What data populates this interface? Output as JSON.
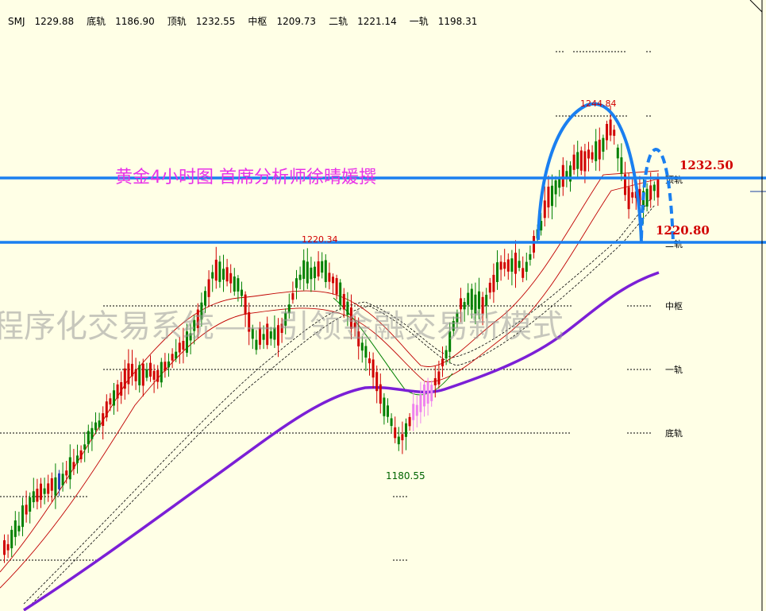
{
  "header": {
    "symbol": "SMJ",
    "symbol_value": "1229.88",
    "items": [
      {
        "label": "底轨",
        "value": "1186.90"
      },
      {
        "label": "顶轨",
        "value": "1232.55"
      },
      {
        "label": "中枢",
        "value": "1209.73"
      },
      {
        "label": "二轨",
        "value": "1221.14"
      },
      {
        "label": "一轨",
        "value": "1198.31"
      }
    ]
  },
  "annotations": {
    "title": "黄金4小时图  首席分析师徐晴媛撰",
    "watermark": "程序化交易系统——引领金融交易新模式",
    "resistance": "1232.50",
    "support": "1220.80",
    "peak_left": "1220.34",
    "peak_right": "1244.84",
    "low": "1180.55"
  },
  "levels": {
    "top": "顶轨",
    "second": "二轨",
    "mid": "中枢",
    "first": "一轨",
    "bottom": "底轨"
  },
  "colors": {
    "background": "#ffffe6",
    "up_candle": "#d10000",
    "down_candle": "#008000",
    "blue_lines": "#1a7ff0",
    "ma_purple": "#7b1fd6",
    "title_magenta": "#e830e8"
  },
  "chart_data": {
    "type": "candlestick",
    "symbol": "SMJ",
    "timeframe": "4H",
    "key_levels": [
      {
        "name": "顶轨",
        "value": 1232.55
      },
      {
        "name": "二轨",
        "value": 1221.14
      },
      {
        "name": "中枢",
        "value": 1209.73
      },
      {
        "name": "一轨",
        "value": 1198.31
      },
      {
        "name": "底轨",
        "value": 1186.9
      }
    ],
    "horizontal_lines": [
      1232.5,
      1220.8
    ],
    "marked_points": [
      {
        "label": "1220.34",
        "value": 1220.34
      },
      {
        "label": "1244.84",
        "value": 1244.84
      },
      {
        "label": "1180.55",
        "value": 1180.55
      }
    ],
    "last_close": 1229.88
  }
}
